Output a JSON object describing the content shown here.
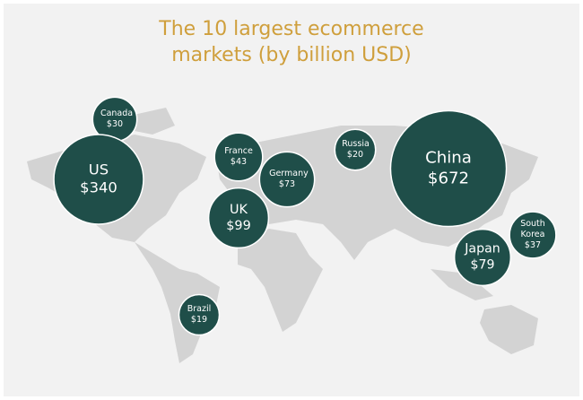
{
  "chart_data": {
    "type": "bubble-map",
    "title": "The 10 largest ecommerce markets (by billion USD)",
    "categories": [
      "Canada",
      "US",
      "France",
      "Germany",
      "UK",
      "Russia",
      "China",
      "Japan",
      "South Korea",
      "Brazil"
    ],
    "values": [
      30,
      340,
      43,
      73,
      99,
      20,
      672,
      79,
      37,
      19
    ],
    "value_labels": [
      "$30",
      "$340",
      "$43",
      "$73",
      "$99",
      "$20",
      "$672",
      "$79",
      "$37",
      "$19"
    ],
    "color": "#1f4e49"
  }
}
